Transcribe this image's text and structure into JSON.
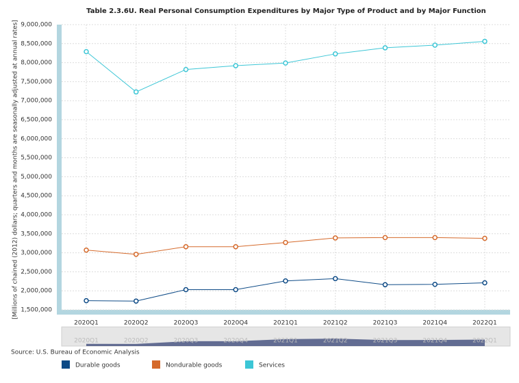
{
  "chart_data": {
    "type": "line",
    "title": "Table 2.3.6U. Real Personal Consumption Expenditures by Major Type of Product and by Major Function",
    "y_label": "[Millions of chained (2012) dollars; quarters and months are seasonally adjusted at annual rates]",
    "source": "Source: U.S. Bureau of Economic Analysis",
    "categories": [
      "2020Q1",
      "2020Q2",
      "2020Q3",
      "2020Q4",
      "2021Q1",
      "2021Q2",
      "2021Q3",
      "2021Q4",
      "2022Q1"
    ],
    "series": [
      {
        "name": "Durable goods",
        "color": "#0d4a86",
        "values": [
          1740000,
          1730000,
          2030000,
          2030000,
          2260000,
          2320000,
          2160000,
          2170000,
          2210000
        ]
      },
      {
        "name": "Nondurable goods",
        "color": "#d5692a",
        "values": [
          3070000,
          2960000,
          3160000,
          3160000,
          3270000,
          3390000,
          3400000,
          3400000,
          3380000
        ]
      },
      {
        "name": "Services",
        "color": "#3cc6d6",
        "values": [
          8290000,
          7230000,
          7820000,
          7920000,
          7990000,
          8230000,
          8390000,
          8460000,
          8560000
        ]
      }
    ],
    "ylim": [
      1500000,
      9000000
    ],
    "yticks": [
      {
        "value": 1500000,
        "label": "1,500,000"
      },
      {
        "value": 2000000,
        "label": "2,000,000"
      },
      {
        "value": 2500000,
        "label": "2,500,000"
      },
      {
        "value": 3000000,
        "label": "3,000,000"
      },
      {
        "value": 3500000,
        "label": "3,500,000"
      },
      {
        "value": 4000000,
        "label": "4,000,000"
      },
      {
        "value": 4500000,
        "label": "4,500,000"
      },
      {
        "value": 5000000,
        "label": "5,000,000"
      },
      {
        "value": 5500000,
        "label": "5,500,000"
      },
      {
        "value": 6000000,
        "label": "6,000,000"
      },
      {
        "value": 6500000,
        "label": "6,500,000"
      },
      {
        "value": 7000000,
        "label": "7,000,000"
      },
      {
        "value": 7500000,
        "label": "7,500,000"
      },
      {
        "value": 8000000,
        "label": "8,000,000"
      },
      {
        "value": 8500000,
        "label": "8,500,000"
      },
      {
        "value": 9000000,
        "label": "9,000,000"
      }
    ],
    "grid": true
  }
}
